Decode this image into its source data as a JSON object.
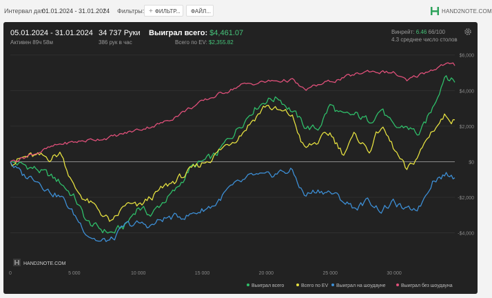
{
  "toolbar": {
    "interval_label": "Интервал дат:",
    "date_range": "01.01.2024 - 31.01.2024",
    "filters_label": "Фильтры:",
    "filter_button": "ФИЛЬТР...",
    "file_button": "ФАЙЛ...",
    "brand": "HAND2NOTE.COM"
  },
  "summary": {
    "range": "05.01.2024 - 31.01.2024",
    "active": "Активен 89ч 58м",
    "hands": "34 737 Руки",
    "hands_rate": "386 рук в час",
    "won_label": "Выиграл всего:",
    "won_value": "$4,461.07",
    "ev_label": "Всего по EV:",
    "ev_value": "$2,355.82",
    "winrate_label": "Винрейт:",
    "winrate_value": "6.46",
    "winrate_suffix": "66/100",
    "tables": "4.3 среднее число столов",
    "watermark": "HAND2NOTE.COM"
  },
  "chart_data": {
    "type": "line",
    "xlim": [
      0,
      34737
    ],
    "ylim": [
      -5800,
      6300
    ],
    "x_ticks": [
      0,
      5000,
      10000,
      15000,
      20000,
      25000,
      30000
    ],
    "x_tick_labels": [
      "0",
      "5 000",
      "10 000",
      "15 000",
      "20 000",
      "25 000",
      "30 000"
    ],
    "y_ticks": [
      6000,
      4000,
      2000,
      0,
      -2000,
      -4000
    ],
    "y_tick_labels": [
      "$6,000",
      "$4,000",
      "$2,000",
      "$0",
      "-$2,000",
      "-$4,000"
    ],
    "series": [
      {
        "name": "Выиграл всего",
        "color": "#2fbf6a",
        "x": [
          0,
          2000,
          4000,
          5000,
          6000,
          7000,
          8000,
          9000,
          10000,
          11000,
          12000,
          13000,
          14000,
          16000,
          18000,
          19000,
          20000,
          21000,
          22000,
          23000,
          24000,
          25000,
          26000,
          27000,
          28000,
          29000,
          30000,
          31000,
          32000,
          33000,
          34000,
          34737
        ],
        "values": [
          0,
          -400,
          -1200,
          -2000,
          -3400,
          -3800,
          -4000,
          -3600,
          -2500,
          -3000,
          -2200,
          -1600,
          -400,
          300,
          2100,
          3000,
          3500,
          3600,
          2900,
          2000,
          1800,
          3200,
          2500,
          2600,
          2300,
          3000,
          1800,
          2000,
          1500,
          3000,
          5000,
          4461
        ]
      },
      {
        "name": "Всего по EV",
        "color": "#e5e040",
        "x": [
          0,
          1500,
          3000,
          4000,
          5000,
          6000,
          7000,
          8000,
          9000,
          10000,
          11000,
          12000,
          13000,
          14000,
          16000,
          18000,
          19000,
          20000,
          21000,
          22000,
          23000,
          24000,
          25000,
          26000,
          27000,
          28000,
          29000,
          30000,
          31000,
          32000,
          33000,
          34000,
          34737
        ],
        "values": [
          0,
          300,
          200,
          500,
          -1500,
          -2200,
          -2800,
          -3500,
          -2400,
          -2600,
          -2000,
          -1500,
          -1000,
          -600,
          400,
          1600,
          2400,
          3200,
          2800,
          2600,
          700,
          1100,
          1600,
          500,
          1500,
          600,
          2000,
          700,
          -600,
          500,
          1800,
          2600,
          2356
        ]
      },
      {
        "name": "Выиграл на шоудауне",
        "color": "#3d8fd6",
        "x": [
          0,
          1000,
          2000,
          3000,
          4000,
          5000,
          6000,
          7000,
          8000,
          9000,
          10000,
          11000,
          12000,
          14000,
          16000,
          17000,
          18000,
          19000,
          20000,
          21000,
          22000,
          23000,
          24000,
          25000,
          26000,
          27000,
          28000,
          29000,
          30000,
          31000,
          32000,
          33000,
          34000,
          34737
        ],
        "values": [
          0,
          -800,
          -900,
          -1600,
          -2000,
          -3000,
          -4000,
          -4500,
          -4400,
          -3600,
          -3500,
          -3600,
          -3200,
          -3000,
          -2400,
          -1600,
          -1200,
          -800,
          -900,
          -600,
          -500,
          -1900,
          -1600,
          -1700,
          -2200,
          -2600,
          -2200,
          -2700,
          -2300,
          -2800,
          -2500,
          -1000,
          -700,
          -900
        ]
      },
      {
        "name": "Выиграл без шоудауна",
        "color": "#e0507a",
        "x": [
          0,
          2000,
          4000,
          6000,
          8000,
          10000,
          12000,
          14000,
          16000,
          18000,
          20000,
          22000,
          23000,
          24000,
          26000,
          28000,
          30000,
          31000,
          32000,
          33000,
          34000,
          34737
        ],
        "values": [
          0,
          500,
          1000,
          1200,
          1400,
          1800,
          2200,
          3000,
          3700,
          4300,
          4500,
          4600,
          4000,
          4300,
          4700,
          5100,
          5000,
          4500,
          4900,
          5200,
          5500,
          5400
        ]
      }
    ]
  }
}
